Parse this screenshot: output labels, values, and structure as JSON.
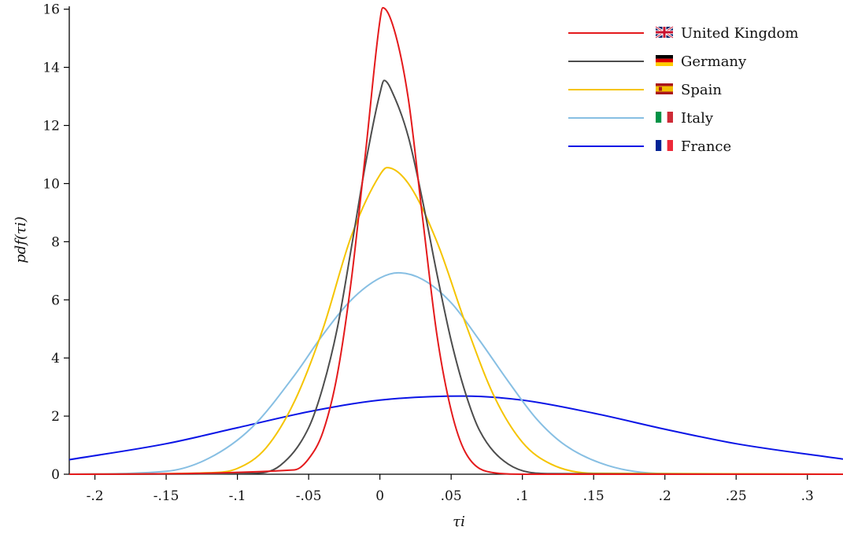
{
  "chart_data": {
    "type": "line",
    "xlabel": "τi",
    "ylabel": "pdf(τi)",
    "xlim": [
      -0.218,
      0.325
    ],
    "ylim": [
      0,
      16.1
    ],
    "grid": false,
    "legend_position": "top-right",
    "x_ticks": [
      {
        "value": -0.2,
        "label": "-.2"
      },
      {
        "value": -0.15,
        "label": "-.15"
      },
      {
        "value": -0.1,
        "label": "-.1"
      },
      {
        "value": -0.05,
        "label": "-.05"
      },
      {
        "value": 0,
        "label": "0"
      },
      {
        "value": 0.05,
        "label": ".05"
      },
      {
        "value": 0.1,
        "label": ".1"
      },
      {
        "value": 0.15,
        "label": ".15"
      },
      {
        "value": 0.2,
        "label": ".2"
      },
      {
        "value": 0.25,
        "label": ".25"
      },
      {
        "value": 0.3,
        "label": ".3"
      }
    ],
    "y_ticks": [
      {
        "value": 0,
        "label": "0"
      },
      {
        "value": 2,
        "label": "2"
      },
      {
        "value": 4,
        "label": "4"
      },
      {
        "value": 6,
        "label": "6"
      },
      {
        "value": 8,
        "label": "8"
      },
      {
        "value": 10,
        "label": "10"
      },
      {
        "value": 12,
        "label": "12"
      },
      {
        "value": 14,
        "label": "14"
      },
      {
        "value": 16,
        "label": "16"
      }
    ],
    "series": [
      {
        "name": "United Kingdom",
        "color": "#e41a1c",
        "flag": "uk-flag-icon",
        "x": [
          -0.218,
          -0.06,
          -0.05,
          -0.04,
          -0.03,
          -0.02,
          -0.01,
          0,
          0.002,
          0.01,
          0.02,
          0.03,
          0.04,
          0.05,
          0.06,
          0.08,
          0.1,
          0.325
        ],
        "y": [
          0,
          0.15,
          0.53,
          1.45,
          3.4,
          6.7,
          11.1,
          15.6,
          16.05,
          15.3,
          12.9,
          8.8,
          4.8,
          2.2,
          0.75,
          0.05,
          0,
          0
        ]
      },
      {
        "name": "Germany",
        "color": "#4d4d4d",
        "flag": "germany-flag-icon",
        "x": [
          -0.218,
          -0.09,
          -0.07,
          -0.05,
          -0.04,
          -0.03,
          -0.02,
          -0.01,
          0,
          0.003,
          0.01,
          0.02,
          0.03,
          0.04,
          0.05,
          0.06,
          0.07,
          0.09,
          0.12,
          0.325
        ],
        "y": [
          0,
          0.03,
          0.3,
          1.6,
          3.0,
          5.0,
          7.8,
          10.7,
          13.1,
          13.55,
          13.0,
          11.6,
          9.4,
          6.9,
          4.6,
          2.8,
          1.5,
          0.35,
          0.02,
          0
        ],
        "peak": 13.55
      },
      {
        "name": "Spain",
        "color": "#f5c400",
        "flag": "spain-flag-icon",
        "x": [
          -0.218,
          -0.12,
          -0.1,
          -0.08,
          -0.06,
          -0.04,
          -0.02,
          0,
          0.005,
          0.02,
          0.04,
          0.06,
          0.08,
          0.1,
          0.12,
          0.15,
          0.325
        ],
        "y": [
          0,
          0.05,
          0.2,
          0.9,
          2.5,
          5.0,
          8.2,
          10.3,
          10.55,
          10.0,
          8.0,
          5.2,
          2.7,
          1.1,
          0.35,
          0.03,
          0
        ],
        "peak": 10.55
      },
      {
        "name": "Italy",
        "color": "#87bfe3",
        "flag": "italy-flag-icon",
        "x": [
          -0.218,
          -0.15,
          -0.12,
          -0.09,
          -0.06,
          -0.04,
          -0.02,
          0,
          0.013,
          0.03,
          0.05,
          0.07,
          0.09,
          0.11,
          0.13,
          0.16,
          0.2,
          0.325
        ],
        "y": [
          0,
          0.1,
          0.55,
          1.6,
          3.4,
          4.8,
          6.0,
          6.75,
          6.93,
          6.7,
          5.9,
          4.6,
          3.2,
          1.9,
          1.0,
          0.3,
          0.02,
          0
        ],
        "peak": 6.93
      },
      {
        "name": "France",
        "color": "#0a14e6",
        "flag": "france-flag-icon",
        "x": [
          -0.218,
          -0.15,
          -0.1,
          -0.05,
          0,
          0.058,
          0.1,
          0.15,
          0.2,
          0.25,
          0.325
        ],
        "y": [
          0.5,
          1.05,
          1.6,
          2.15,
          2.55,
          2.69,
          2.55,
          2.1,
          1.55,
          1.05,
          0.52
        ],
        "peak": 2.69
      }
    ]
  }
}
